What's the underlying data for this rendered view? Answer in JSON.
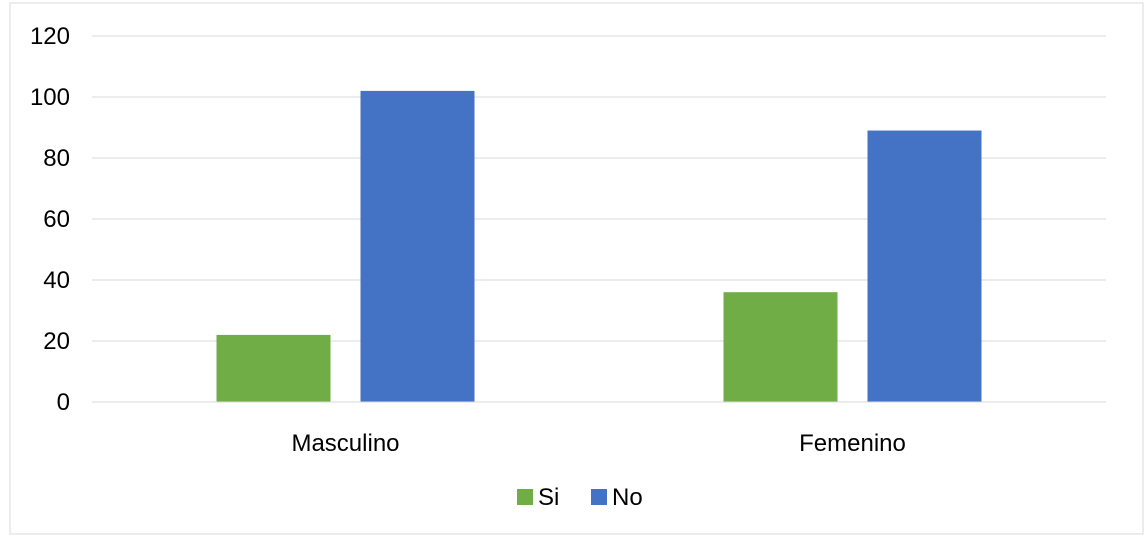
{
  "chart_data": {
    "type": "bar",
    "title": "",
    "xlabel": "",
    "ylabel": "",
    "categories": [
      "Masculino",
      "Femenino"
    ],
    "series": [
      {
        "name": "Si",
        "values": [
          22,
          36
        ],
        "color": "#70AD47"
      },
      {
        "name": "No",
        "values": [
          102,
          89
        ],
        "color": "#4472C4"
      }
    ],
    "ylim": [
      0,
      120
    ],
    "yticks": [
      0,
      20,
      40,
      60,
      80,
      100,
      120
    ],
    "grid": true,
    "legend_position": "bottom"
  }
}
